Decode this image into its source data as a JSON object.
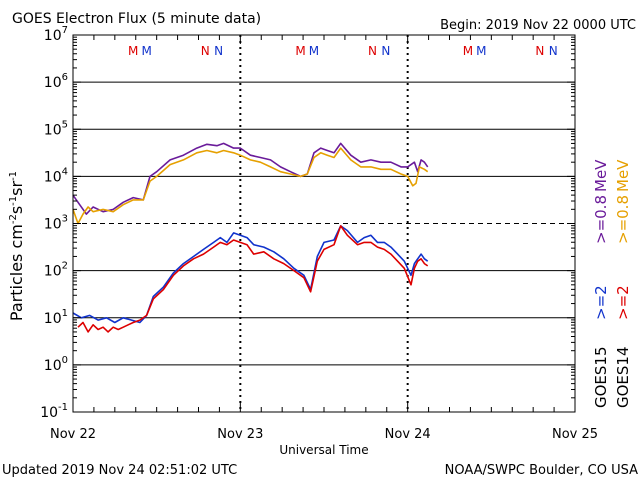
{
  "chart_data": {
    "type": "line",
    "title": "GOES Electron Flux (5 minute data)",
    "begin_label": "Begin: 2019 Nov 22 0000 UTC",
    "xlabel": "Universal Time",
    "ylabel": "Particles cm⁻²s⁻¹sr⁻¹",
    "x_unit": "days since 2019 Nov 22 0000 UTC",
    "xlim": [
      0,
      3
    ],
    "ylim_log10": [
      -1,
      7
    ],
    "x_ticks": [
      {
        "x": 0,
        "label": "Nov 22"
      },
      {
        "x": 1,
        "label": "Nov 23"
      },
      {
        "x": 2,
        "label": "Nov 24"
      },
      {
        "x": 3,
        "label": "Nov 25"
      }
    ],
    "y_ticks": [
      {
        "exp": 7,
        "base": "10",
        "sup": "7"
      },
      {
        "exp": 6,
        "base": "10",
        "sup": "6"
      },
      {
        "exp": 5,
        "base": "10",
        "sup": "5"
      },
      {
        "exp": 4,
        "base": "10",
        "sup": "4"
      },
      {
        "exp": 3,
        "base": "10",
        "sup": "3"
      },
      {
        "exp": 2,
        "base": "10",
        "sup": "2"
      },
      {
        "exp": 1,
        "base": "10",
        "sup": "1"
      },
      {
        "exp": 0,
        "base": "10",
        "sup": "0"
      },
      {
        "exp": -1,
        "base": "10",
        "sup": "-1"
      }
    ],
    "solid_gridlines_exp": [
      6,
      5,
      4,
      2,
      1,
      0
    ],
    "dashed_gridlines_exp": [
      3
    ],
    "day_separators_x": [
      1,
      2
    ],
    "local_time_markers": [
      {
        "x": 0.36,
        "label": "M",
        "color": "#dd0000"
      },
      {
        "x": 0.44,
        "label": "M",
        "color": "#1133cc"
      },
      {
        "x": 0.79,
        "label": "N",
        "color": "#dd0000"
      },
      {
        "x": 0.87,
        "label": "N",
        "color": "#1133cc"
      },
      {
        "x": 1.36,
        "label": "M",
        "color": "#dd0000"
      },
      {
        "x": 1.44,
        "label": "M",
        "color": "#1133cc"
      },
      {
        "x": 1.79,
        "label": "N",
        "color": "#dd0000"
      },
      {
        "x": 1.87,
        "label": "N",
        "color": "#1133cc"
      },
      {
        "x": 2.36,
        "label": "M",
        "color": "#dd0000"
      },
      {
        "x": 2.44,
        "label": "M",
        "color": "#1133cc"
      },
      {
        "x": 2.79,
        "label": "N",
        "color": "#dd0000"
      },
      {
        "x": 2.87,
        "label": "N",
        "color": "#1133cc"
      }
    ],
    "series": [
      {
        "name": "GOES15 >=0.8 MeV",
        "color": "#6a1b9a",
        "x": [
          0,
          0.04,
          0.08,
          0.12,
          0.18,
          0.24,
          0.3,
          0.36,
          0.42,
          0.46,
          0.5,
          0.58,
          0.66,
          0.74,
          0.8,
          0.86,
          0.9,
          0.96,
          1.0,
          1.06,
          1.12,
          1.18,
          1.24,
          1.3,
          1.36,
          1.4,
          1.44,
          1.48,
          1.52,
          1.56,
          1.6,
          1.66,
          1.72,
          1.78,
          1.84,
          1.9,
          1.96,
          2.0,
          2.04,
          2.06,
          2.08,
          2.1,
          2.12
        ],
        "log10": [
          3.6,
          3.4,
          3.2,
          3.35,
          3.25,
          3.3,
          3.45,
          3.55,
          3.5,
          4.0,
          4.1,
          4.35,
          4.45,
          4.6,
          4.68,
          4.65,
          4.7,
          4.6,
          4.6,
          4.45,
          4.4,
          4.35,
          4.2,
          4.1,
          4.0,
          4.05,
          4.5,
          4.6,
          4.55,
          4.5,
          4.7,
          4.45,
          4.3,
          4.35,
          4.3,
          4.3,
          4.2,
          4.2,
          4.3,
          4.1,
          4.35,
          4.3,
          4.2
        ]
      },
      {
        "name": "GOES14 >=0.8 MeV",
        "color": "#e6a000",
        "x": [
          0,
          0.03,
          0.06,
          0.09,
          0.12,
          0.18,
          0.24,
          0.3,
          0.36,
          0.42,
          0.46,
          0.5,
          0.58,
          0.66,
          0.74,
          0.8,
          0.86,
          0.9,
          0.96,
          1.0,
          1.06,
          1.12,
          1.18,
          1.24,
          1.3,
          1.36,
          1.4,
          1.44,
          1.48,
          1.52,
          1.56,
          1.6,
          1.66,
          1.72,
          1.78,
          1.84,
          1.9,
          1.96,
          2.0,
          2.03,
          2.05,
          2.07,
          2.1,
          2.12
        ],
        "log10": [
          3.3,
          3.0,
          3.2,
          3.35,
          3.25,
          3.3,
          3.25,
          3.4,
          3.5,
          3.5,
          3.9,
          4.0,
          4.25,
          4.35,
          4.5,
          4.55,
          4.5,
          4.55,
          4.5,
          4.45,
          4.35,
          4.3,
          4.2,
          4.1,
          4.05,
          4.0,
          4.05,
          4.4,
          4.5,
          4.45,
          4.4,
          4.6,
          4.35,
          4.2,
          4.2,
          4.15,
          4.15,
          4.05,
          4.0,
          3.8,
          3.85,
          4.2,
          4.15,
          4.1
        ]
      },
      {
        "name": "GOES15 >=2 MeV",
        "color": "#1133cc",
        "x": [
          0,
          0.05,
          0.1,
          0.15,
          0.2,
          0.25,
          0.3,
          0.35,
          0.4,
          0.44,
          0.48,
          0.54,
          0.6,
          0.66,
          0.72,
          0.78,
          0.84,
          0.88,
          0.92,
          0.96,
          1.0,
          1.04,
          1.08,
          1.14,
          1.2,
          1.26,
          1.32,
          1.38,
          1.42,
          1.46,
          1.5,
          1.56,
          1.6,
          1.64,
          1.7,
          1.74,
          1.78,
          1.82,
          1.86,
          1.9,
          1.94,
          1.98,
          2.02,
          2.04,
          2.06,
          2.08,
          2.1,
          2.12
        ],
        "log10": [
          1.1,
          1.0,
          1.05,
          0.95,
          1.0,
          0.9,
          1.0,
          0.95,
          0.9,
          1.05,
          1.45,
          1.65,
          1.95,
          2.15,
          2.3,
          2.45,
          2.6,
          2.7,
          2.6,
          2.8,
          2.75,
          2.7,
          2.55,
          2.5,
          2.4,
          2.25,
          2.05,
          1.9,
          1.6,
          2.3,
          2.6,
          2.65,
          2.95,
          2.85,
          2.6,
          2.7,
          2.75,
          2.6,
          2.6,
          2.5,
          2.35,
          2.2,
          1.9,
          2.15,
          2.25,
          2.35,
          2.25,
          2.2
        ]
      },
      {
        "name": "GOES14 >=2 MeV",
        "color": "#dd0000",
        "x": [
          0.03,
          0.06,
          0.09,
          0.12,
          0.15,
          0.18,
          0.21,
          0.24,
          0.27,
          0.3,
          0.33,
          0.36,
          0.4,
          0.44,
          0.48,
          0.54,
          0.6,
          0.66,
          0.72,
          0.78,
          0.84,
          0.88,
          0.92,
          0.96,
          1.0,
          1.04,
          1.08,
          1.14,
          1.2,
          1.26,
          1.32,
          1.38,
          1.42,
          1.46,
          1.5,
          1.56,
          1.6,
          1.64,
          1.7,
          1.74,
          1.78,
          1.82,
          1.86,
          1.9,
          1.94,
          1.98,
          2.02,
          2.04,
          2.06,
          2.08,
          2.1,
          2.12
        ],
        "log10": [
          0.8,
          0.9,
          0.7,
          0.85,
          0.75,
          0.8,
          0.7,
          0.8,
          0.75,
          0.8,
          0.85,
          0.9,
          0.95,
          1.05,
          1.4,
          1.6,
          1.9,
          2.1,
          2.25,
          2.35,
          2.5,
          2.6,
          2.55,
          2.65,
          2.6,
          2.55,
          2.35,
          2.4,
          2.25,
          2.15,
          2.0,
          1.85,
          1.55,
          2.2,
          2.45,
          2.55,
          2.95,
          2.75,
          2.55,
          2.6,
          2.6,
          2.5,
          2.45,
          2.35,
          2.2,
          2.05,
          1.7,
          2.05,
          2.2,
          2.25,
          2.15,
          2.1
        ]
      }
    ],
    "right_labels": {
      "goes15": "GOES15",
      "goes14": "GOES14",
      "goes15_high": ">=2",
      "goes14_high": ">=2",
      "goes15_low": ">=0.8",
      "goes14_low": ">=0.8",
      "unit": "MeV"
    }
  },
  "footer": {
    "updated": "Updated 2019 Nov 24 02:51:02 UTC",
    "source": "NOAA/SWPC Boulder, CO USA"
  }
}
